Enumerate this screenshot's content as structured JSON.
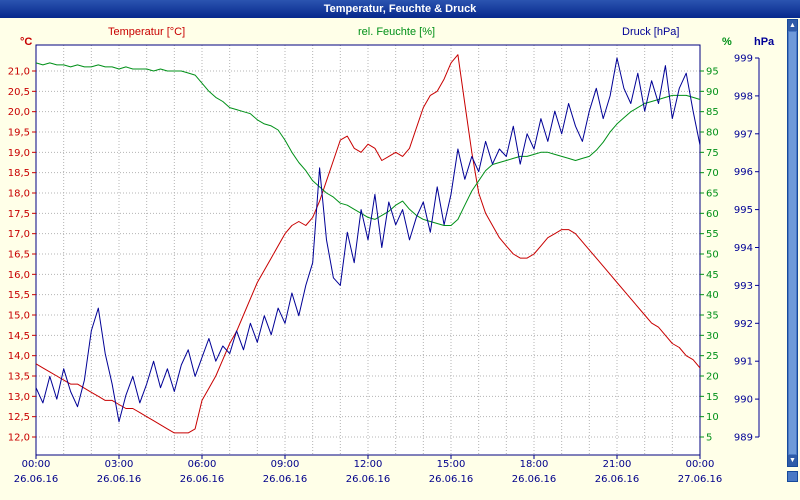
{
  "window": {
    "title": "Temperatur, Feuchte & Druck"
  },
  "legend": {
    "temperature": "Temperatur [°C]",
    "humidity": "rel. Feuchte [%]",
    "pressure": "Druck [hPa]"
  },
  "axes": {
    "left_unit": "°C",
    "right_unit_humidity": "%",
    "right_unit_pressure": "hPa",
    "temp_ticks": [
      "21,0",
      "20,5",
      "20,0",
      "19,5",
      "19,0",
      "18,5",
      "18,0",
      "17,5",
      "17,0",
      "16,5",
      "16,0",
      "15,5",
      "15,0",
      "14,5",
      "14,0",
      "13,5",
      "13,0",
      "12,5",
      "12,0"
    ],
    "hum_ticks": [
      "95",
      "90",
      "85",
      "80",
      "75",
      "70",
      "65",
      "60",
      "55",
      "50",
      "45",
      "40",
      "35",
      "30",
      "25",
      "20",
      "15",
      "10",
      "5"
    ],
    "press_ticks": [
      "999",
      "998",
      "997",
      "996",
      "995",
      "994",
      "993",
      "992",
      "991",
      "990",
      "989"
    ],
    "x_times": [
      "00:00",
      "03:00",
      "06:00",
      "09:00",
      "12:00",
      "15:00",
      "18:00",
      "21:00",
      "00:00"
    ],
    "x_dates": [
      "26.06.16",
      "26.06.16",
      "26.06.16",
      "26.06.16",
      "26.06.16",
      "26.06.16",
      "26.06.16",
      "26.06.16",
      "27.06.16"
    ]
  },
  "colors": {
    "temperature": "#C80000",
    "humidity": "#009018",
    "pressure": "#000096",
    "axis_text": "#00008B",
    "border": "#000080",
    "grid": "#B4B4B4",
    "titlebar": "#0A3DA8",
    "background": "#FFFFE8"
  },
  "icons": {
    "scroll_up": "▲",
    "scroll_down": "▼"
  },
  "chart_data": {
    "type": "line",
    "title": "Temperatur, Feuchte & Druck",
    "x_axis": "time, 15-minute steps from 26.06.16 00:00 to 27.06.16 00:00",
    "x_tick_labels": [
      "00:00",
      "03:00",
      "06:00",
      "09:00",
      "12:00",
      "15:00",
      "18:00",
      "21:00",
      "00:00"
    ],
    "x_tick_dates": [
      "26.06.16",
      "26.06.16",
      "26.06.16",
      "26.06.16",
      "26.06.16",
      "26.06.16",
      "26.06.16",
      "26.06.16",
      "27.06.16"
    ],
    "grid": true,
    "series": [
      {
        "name": "Temperatur",
        "name_key": "temperature",
        "unit": "°C",
        "color": "#C80000",
        "axis": "left",
        "range": [
          12.0,
          21.0
        ],
        "values": [
          13.8,
          13.7,
          13.6,
          13.5,
          13.4,
          13.3,
          13.3,
          13.2,
          13.1,
          13.0,
          12.9,
          12.9,
          12.8,
          12.7,
          12.7,
          12.6,
          12.5,
          12.4,
          12.3,
          12.2,
          12.1,
          12.1,
          12.1,
          12.2,
          12.9,
          13.2,
          13.5,
          13.9,
          14.3,
          14.6,
          15.0,
          15.4,
          15.8,
          16.1,
          16.4,
          16.7,
          17.0,
          17.2,
          17.3,
          17.2,
          17.4,
          17.8,
          18.3,
          18.8,
          19.3,
          19.4,
          19.1,
          19.0,
          19.2,
          19.1,
          18.8,
          18.9,
          19.0,
          18.9,
          19.1,
          19.6,
          20.1,
          20.4,
          20.5,
          20.8,
          21.2,
          21.4,
          20.2,
          19.0,
          18.0,
          17.5,
          17.2,
          16.9,
          16.7,
          16.5,
          16.4,
          16.4,
          16.5,
          16.7,
          16.9,
          17.0,
          17.1,
          17.1,
          17.0,
          16.8,
          16.6,
          16.4,
          16.2,
          16.0,
          15.8,
          15.6,
          15.4,
          15.2,
          15.0,
          14.8,
          14.7,
          14.5,
          14.3,
          14.2,
          14.0,
          13.9,
          13.7
        ]
      },
      {
        "name": "rel. Feuchte",
        "name_key": "humidity",
        "unit": "%",
        "color": "#009018",
        "axis": "right_inner",
        "range": [
          5,
          95
        ],
        "values": [
          97,
          96.5,
          97,
          96.5,
          96.5,
          96,
          96.5,
          96,
          96,
          96.5,
          96,
          96,
          95.5,
          96,
          95.5,
          95.5,
          95.5,
          95,
          95.5,
          95,
          95,
          95,
          94.5,
          94,
          92,
          90,
          88.5,
          87.5,
          86,
          85.5,
          85,
          84.5,
          83,
          82,
          81.5,
          80.5,
          78,
          75,
          72.5,
          70.5,
          68,
          66.5,
          65,
          64,
          62.5,
          62,
          61,
          60,
          59,
          58.5,
          59.5,
          60.5,
          62,
          63,
          61,
          59.5,
          58.5,
          58,
          57.5,
          57,
          57,
          58.5,
          62,
          65.5,
          68,
          70.5,
          72,
          72.5,
          73,
          73.5,
          74,
          74,
          74.5,
          75,
          75,
          74.5,
          74,
          73.5,
          73,
          73.5,
          74,
          75.5,
          77.5,
          80,
          82,
          83.5,
          85,
          86,
          87,
          87.5,
          88,
          88.5,
          89,
          89,
          89,
          88.5,
          88
        ]
      },
      {
        "name": "Druck",
        "name_key": "pressure",
        "unit": "hPa",
        "color": "#000096",
        "axis": "right_outer",
        "range": [
          989,
          999
        ],
        "values": [
          990.3,
          989.9,
          990.6,
          990.0,
          990.8,
          990.2,
          989.8,
          990.5,
          991.8,
          992.4,
          991.2,
          990.4,
          989.4,
          990.1,
          990.6,
          989.9,
          990.4,
          991.0,
          990.3,
          990.8,
          990.2,
          990.9,
          991.3,
          990.6,
          991.1,
          991.6,
          991.0,
          991.4,
          991.2,
          991.8,
          991.3,
          992.0,
          991.5,
          992.2,
          991.7,
          992.4,
          992.0,
          992.8,
          992.2,
          993.0,
          993.6,
          996.1,
          994.2,
          993.2,
          993.0,
          994.4,
          993.6,
          995.0,
          994.2,
          995.4,
          994.0,
          995.2,
          994.6,
          995.0,
          994.2,
          994.8,
          995.2,
          994.4,
          995.6,
          994.6,
          995.4,
          996.6,
          995.8,
          996.4,
          996.0,
          996.8,
          996.2,
          996.6,
          996.4,
          997.2,
          996.2,
          997.0,
          996.6,
          997.4,
          996.8,
          997.6,
          997.0,
          997.8,
          997.2,
          996.8,
          997.6,
          998.2,
          997.4,
          998.0,
          999.0,
          998.2,
          997.8,
          998.6,
          997.6,
          998.4,
          997.8,
          998.8,
          997.4,
          998.2,
          998.6,
          997.6,
          996.7
        ]
      }
    ]
  }
}
